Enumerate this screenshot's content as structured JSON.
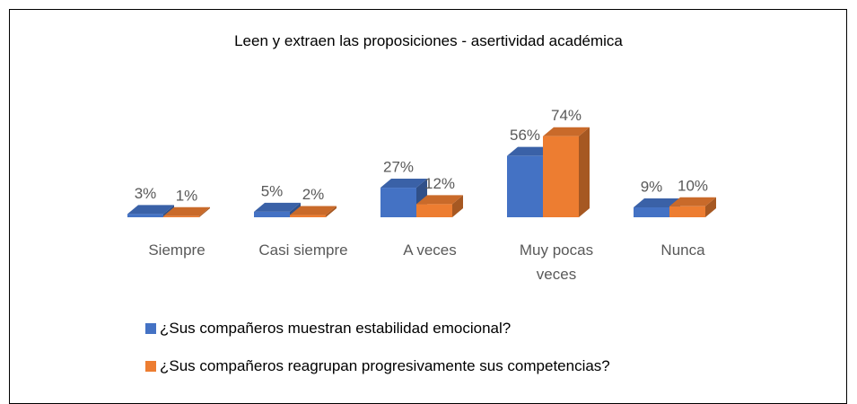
{
  "chart_data": {
    "type": "bar3d",
    "title": "Leen y extraen las proposiciones - asertividad académica",
    "categories": [
      "Siempre",
      "Casi siempre",
      "A veces",
      "Muy pocas veces",
      "Nunca"
    ],
    "series": [
      {
        "name": "¿Sus compañeros muestran estabilidad emocional?",
        "color": "#4472c4",
        "values": [
          3,
          5,
          27,
          56,
          9
        ],
        "value_labels": [
          "3%",
          "5%",
          "27%",
          "56%",
          "9%"
        ]
      },
      {
        "name": "¿Sus compañeros reagrupan progresivamente sus competencias?",
        "color": "#ed7d31",
        "values": [
          1,
          2,
          12,
          74,
          10
        ],
        "value_labels": [
          "1%",
          "2%",
          "12%",
          "74%",
          "10%"
        ]
      }
    ],
    "legend": "bottom-left"
  }
}
